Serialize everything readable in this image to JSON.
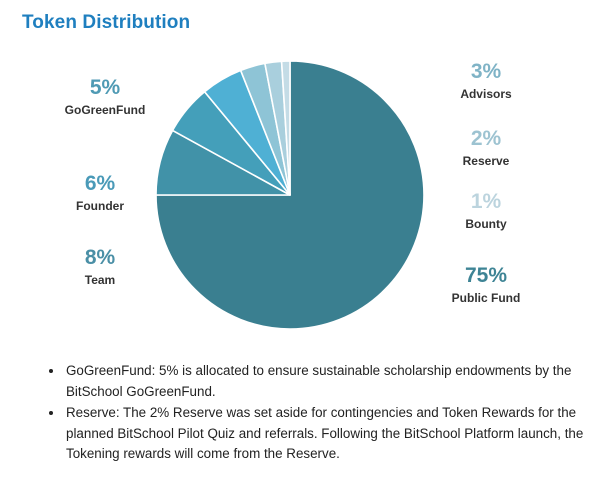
{
  "title": "Token Distribution",
  "chart_data": {
    "type": "pie",
    "title": "Token Distribution",
    "start_angle_deg": 0,
    "slices": [
      {
        "label": "Public Fund",
        "value": 75,
        "pct_label": "75%",
        "color": "#3a7f90",
        "label_color": "#3e8495"
      },
      {
        "label": "Team",
        "value": 8,
        "pct_label": "8%",
        "color": "#4192a8",
        "label_color": "#4a8fa6"
      },
      {
        "label": "Founder",
        "value": 6,
        "pct_label": "6%",
        "color": "#449fba",
        "label_color": "#4a9ab8"
      },
      {
        "label": "GoGreenFund",
        "value": 5,
        "pct_label": "5%",
        "color": "#4fb0d4",
        "label_color": "#4f9ab4"
      },
      {
        "label": "Advisors",
        "value": 3,
        "pct_label": "3%",
        "color": "#8ec4d6",
        "label_color": "#7fb3c6"
      },
      {
        "label": "Reserve",
        "value": 2,
        "pct_label": "2%",
        "color": "#a9cfdd",
        "label_color": "#9dc3d1"
      },
      {
        "label": "Bounty",
        "value": 1,
        "pct_label": "1%",
        "color": "#c4dce6",
        "label_color": "#bcd4de"
      }
    ]
  },
  "notes": [
    "GoGreenFund: 5% is allocated to ensure sustainable scholarship endowments by the BitSchool GoGreenFund.",
    "Reserve: The 2% Reserve was set aside for contingencies and Token Rewards for the planned BitSchool Pilot Quiz and referrals. Following the BitSchool Platform launch, the Tokening rewards will come from the Reserve."
  ]
}
